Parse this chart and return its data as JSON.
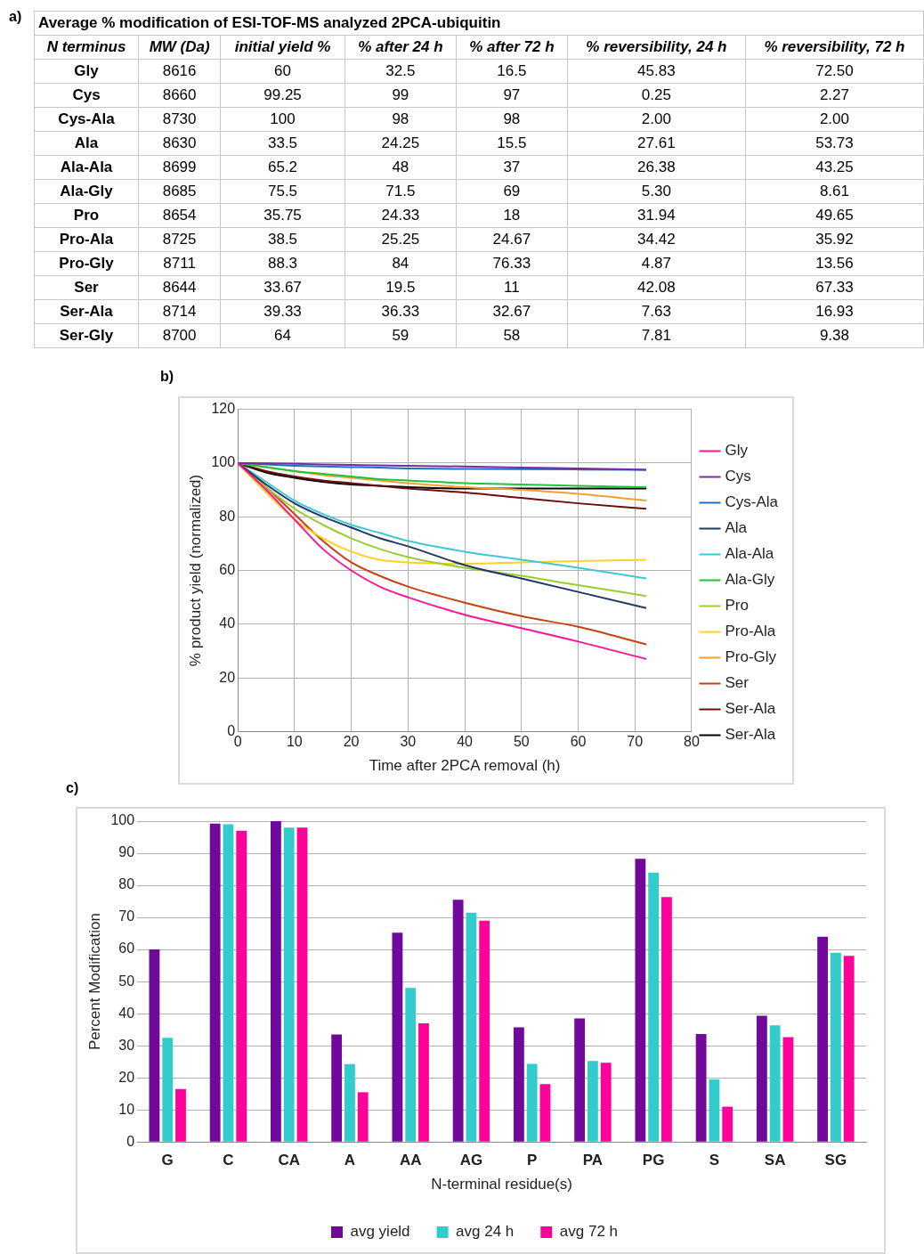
{
  "chart_data": [
    {
      "type": "heatmap",
      "title": "Average % modification of ESI-TOF-MS analyzed 2PCA-ubiquitin",
      "ylabel": "N terminus",
      "annotations": [
        "a)"
      ],
      "categories": [
        "MW (Da)",
        "initial yield %",
        "% after 24 h",
        "% after 72 h",
        "% reversibility, 24 h",
        "% reversibility, 72 h"
      ],
      "y_categories": [
        "Gly",
        "Cys",
        "Cys-Ala",
        "Ala",
        "Ala-Ala",
        "Ala-Gly",
        "Pro",
        "Pro-Ala",
        "Pro-Gly",
        "Ser",
        "Ser-Ala",
        "Ser-Gly"
      ],
      "cells": [
        [
          8616,
          60,
          32.5,
          16.5,
          45.83,
          72.5
        ],
        [
          8660,
          99.25,
          99,
          97,
          0.25,
          2.27
        ],
        [
          8730,
          100,
          98,
          98,
          2,
          2
        ],
        [
          8630,
          33.5,
          24.25,
          15.5,
          27.61,
          53.73
        ],
        [
          8699,
          65.2,
          48,
          37,
          26.38,
          43.25
        ],
        [
          8685,
          75.5,
          71.5,
          69,
          5.3,
          8.61
        ],
        [
          8654,
          35.75,
          24.33,
          18,
          31.94,
          49.65
        ],
        [
          8725,
          38.5,
          25.25,
          24.67,
          34.42,
          35.92
        ],
        [
          8711,
          88.3,
          84,
          76.33,
          4.87,
          13.56
        ],
        [
          8644,
          33.67,
          19.5,
          11,
          42.08,
          67.33
        ],
        [
          8714,
          39.33,
          36.33,
          32.67,
          7.63,
          16.93
        ],
        [
          8700,
          64,
          59,
          58,
          7.81,
          9.38
        ]
      ],
      "cell_labels": [
        [
          "8616",
          "60",
          "32.5",
          "16.5",
          "45.83",
          "72.50"
        ],
        [
          "8660",
          "99.25",
          "99",
          "97",
          "0.25",
          "2.27"
        ],
        [
          "8730",
          "100",
          "98",
          "98",
          "2.00",
          "2.00"
        ],
        [
          "8630",
          "33.5",
          "24.25",
          "15.5",
          "27.61",
          "53.73"
        ],
        [
          "8699",
          "65.2",
          "48",
          "37",
          "26.38",
          "43.25"
        ],
        [
          "8685",
          "75.5",
          "71.5",
          "69",
          "5.30",
          "8.61"
        ],
        [
          "8654",
          "35.75",
          "24.33",
          "18",
          "31.94",
          "49.65"
        ],
        [
          "8725",
          "38.5",
          "25.25",
          "24.67",
          "34.42",
          "35.92"
        ],
        [
          "8711",
          "88.3",
          "84",
          "76.33",
          "4.87",
          "13.56"
        ],
        [
          "8644",
          "33.67",
          "19.5",
          "11",
          "42.08",
          "67.33"
        ],
        [
          "8714",
          "39.33",
          "36.33",
          "32.67",
          "7.63",
          "16.93"
        ],
        [
          "8700",
          "64",
          "59",
          "58",
          "7.81",
          "9.38"
        ]
      ]
    },
    {
      "type": "line",
      "xlabel": "Time after 2PCA removal (h)",
      "ylabel": "% product yield (normalized)",
      "annotations": [
        "b)"
      ],
      "x": [
        0,
        5,
        10,
        15,
        20,
        25,
        30,
        40,
        50,
        60,
        72
      ],
      "xlim": [
        0,
        80
      ],
      "xticks": [
        0,
        10,
        20,
        30,
        40,
        50,
        60,
        70,
        80
      ],
      "ylim": [
        0,
        120
      ],
      "yticks": [
        0,
        20,
        40,
        60,
        80,
        100,
        120
      ],
      "grid": true,
      "legend": "right",
      "marker": "none",
      "series": [
        {
          "name": "Gly",
          "color": "#ff1493",
          "values": [
            100,
            90,
            79,
            68,
            60,
            54,
            50,
            43.5,
            38.5,
            33.5,
            27
          ]
        },
        {
          "name": "Cys",
          "color": "#7030a0",
          "values": [
            100,
            99.9,
            99.7,
            99.5,
            99.3,
            99.1,
            99,
            98.7,
            98.3,
            98,
            97.5
          ]
        },
        {
          "name": "Cys-Ala",
          "color": "#1f6fc5",
          "values": [
            100,
            99.5,
            99,
            98.7,
            98.5,
            98.3,
            98,
            97.8,
            97.7,
            97.6,
            97.5
          ]
        },
        {
          "name": "Ala",
          "color": "#1f3864",
          "values": [
            100,
            92,
            85,
            80,
            76,
            72,
            69,
            62,
            57,
            52,
            46
          ]
        },
        {
          "name": "Ala-Ala",
          "color": "#40c8d0",
          "values": [
            100,
            93,
            86,
            81,
            77,
            74,
            71,
            67,
            64,
            61,
            57
          ]
        },
        {
          "name": "Ala-Gly",
          "color": "#22c33a",
          "values": [
            100,
            98.5,
            97,
            96,
            95,
            94,
            93.5,
            92.5,
            92,
            91.5,
            91
          ]
        },
        {
          "name": "Pro",
          "color": "#9acd32",
          "values": [
            100,
            91,
            83,
            77,
            72,
            68,
            65,
            61,
            58,
            54.5,
            50.5
          ]
        },
        {
          "name": "Pro-Ala",
          "color": "#ffd21f",
          "values": [
            100,
            89,
            79,
            72,
            67,
            64,
            63,
            62.5,
            63,
            63.5,
            64
          ]
        },
        {
          "name": "Pro-Gly",
          "color": "#f7a030",
          "values": [
            100,
            98.5,
            97,
            95.5,
            94.5,
            93.5,
            92.5,
            91,
            90,
            88.5,
            86
          ]
        },
        {
          "name": "Ser",
          "color": "#c8410f",
          "values": [
            100,
            91,
            81,
            71,
            63,
            58,
            54,
            48,
            43,
            39,
            32.5
          ]
        },
        {
          "name": "Ser-Ala",
          "color": "#6b0f0f",
          "values": [
            100,
            97,
            95,
            93.5,
            92.5,
            91.5,
            90.5,
            89,
            87,
            85,
            83
          ]
        },
        {
          "name": "Ser-Ala",
          "color": "#000000",
          "values": [
            100,
            96.5,
            94.5,
            93,
            92,
            91.5,
            91,
            90.5,
            90.5,
            90.5,
            90.5
          ]
        }
      ]
    },
    {
      "type": "bar",
      "xlabel": "N-terminal residue(s)",
      "ylabel": "Percent Modification",
      "annotations": [
        "c)"
      ],
      "categories": [
        "G",
        "C",
        "CA",
        "A",
        "AA",
        "AG",
        "P",
        "PA",
        "PG",
        "S",
        "SA",
        "SG"
      ],
      "ylim": [
        0,
        100
      ],
      "yticks": [
        0,
        10,
        20,
        30,
        40,
        50,
        60,
        70,
        80,
        90,
        100
      ],
      "grid": "y",
      "legend": "bottom",
      "series": [
        {
          "name": "avg yield",
          "color": "#70089a",
          "values": [
            60,
            99.25,
            100,
            33.5,
            65.2,
            75.5,
            35.75,
            38.5,
            88.3,
            33.67,
            39.33,
            64
          ]
        },
        {
          "name": "avg 24 h",
          "color": "#33cccc",
          "values": [
            32.5,
            99,
            98,
            24.25,
            48,
            71.5,
            24.33,
            25.25,
            84,
            19.5,
            36.33,
            59
          ]
        },
        {
          "name": "avg 72 h",
          "color": "#ff0099",
          "values": [
            16.5,
            97,
            98,
            15.5,
            37,
            69,
            18,
            24.67,
            76.33,
            11,
            32.67,
            58
          ]
        }
      ]
    }
  ]
}
